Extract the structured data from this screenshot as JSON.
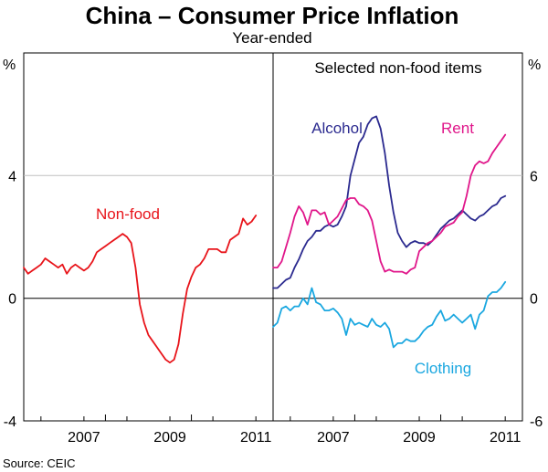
{
  "chart_data": {
    "type": "line",
    "title": "China – Consumer Price Inflation",
    "subtitle": "Year-ended",
    "source": "Source: CEIC",
    "colors": {
      "axes": "#000000",
      "grid": "#c0c0c0",
      "nonfood": "#e8141a",
      "alcohol": "#2b2a8f",
      "rent": "#e0168a",
      "clothing": "#1aa7e0"
    },
    "left_panel": {
      "unit_label": "%",
      "ylim": [
        -4,
        8
      ],
      "yticks": [
        -4,
        0,
        4
      ],
      "xlim": [
        2005.6,
        2011.4
      ],
      "xticks": [
        {
          "label": "2007",
          "pos": 2007.5
        },
        {
          "label": "2009",
          "pos": 2009.5
        },
        {
          "label": "2011",
          "pos": 2011.5
        }
      ],
      "series": [
        {
          "name": "Non-food",
          "label": "Non-food",
          "color": "#e8141a",
          "x": [
            2005.6,
            2005.7,
            2005.8,
            2005.9,
            2006.0,
            2006.1,
            2006.2,
            2006.3,
            2006.4,
            2006.5,
            2006.6,
            2006.7,
            2006.8,
            2006.9,
            2007.0,
            2007.1,
            2007.2,
            2007.3,
            2007.4,
            2007.5,
            2007.6,
            2007.7,
            2007.8,
            2007.9,
            2008.0,
            2008.1,
            2008.2,
            2008.3,
            2008.4,
            2008.5,
            2008.6,
            2008.7,
            2008.8,
            2008.9,
            2009.0,
            2009.1,
            2009.2,
            2009.3,
            2009.4,
            2009.5,
            2009.6,
            2009.7,
            2009.8,
            2009.9,
            2010.0,
            2010.1,
            2010.2,
            2010.3,
            2010.4,
            2010.5,
            2010.6,
            2010.7,
            2010.8,
            2010.9,
            2011.0
          ],
          "y": [
            1.0,
            0.8,
            0.9,
            1.0,
            1.1,
            1.3,
            1.2,
            1.1,
            1.0,
            1.1,
            0.8,
            1.0,
            1.1,
            1.0,
            0.9,
            1.0,
            1.2,
            1.5,
            1.6,
            1.7,
            1.8,
            1.9,
            2.0,
            2.1,
            2.0,
            1.8,
            1.0,
            -0.2,
            -0.8,
            -1.2,
            -1.4,
            -1.6,
            -1.8,
            -2.0,
            -2.1,
            -2.0,
            -1.5,
            -0.5,
            0.3,
            0.7,
            1.0,
            1.1,
            1.3,
            1.6,
            1.6,
            1.6,
            1.5,
            1.5,
            1.9,
            2.0,
            2.1,
            2.6,
            2.4,
            2.5,
            2.7
          ]
        }
      ]
    },
    "right_panel": {
      "panel_title": "Selected non-food items",
      "unit_label": "%",
      "ylim": [
        -6,
        12
      ],
      "yticks": [
        -6,
        0,
        6
      ],
      "xlim": [
        2005.6,
        2011.4
      ],
      "xticks": [
        {
          "label": "2007",
          "pos": 2007.5
        },
        {
          "label": "2009",
          "pos": 2009.5
        },
        {
          "label": "2011",
          "pos": 2011.5
        }
      ],
      "series": [
        {
          "name": "Alcohol",
          "label": "Alcohol",
          "color": "#2b2a8f",
          "x": [
            2005.6,
            2005.7,
            2005.8,
            2005.9,
            2006.0,
            2006.1,
            2006.2,
            2006.3,
            2006.4,
            2006.5,
            2006.6,
            2006.7,
            2006.8,
            2006.9,
            2007.0,
            2007.1,
            2007.2,
            2007.3,
            2007.4,
            2007.5,
            2007.6,
            2007.7,
            2007.8,
            2007.9,
            2008.0,
            2008.1,
            2008.2,
            2008.3,
            2008.4,
            2008.5,
            2008.6,
            2008.7,
            2008.8,
            2008.9,
            2009.0,
            2009.1,
            2009.2,
            2009.3,
            2009.4,
            2009.5,
            2009.6,
            2009.7,
            2009.8,
            2009.9,
            2010.0,
            2010.1,
            2010.2,
            2010.3,
            2010.4,
            2010.5,
            2010.6,
            2010.7,
            2010.8,
            2010.9,
            2011.0
          ],
          "y": [
            0.5,
            0.5,
            0.7,
            0.9,
            1.0,
            1.5,
            1.9,
            2.4,
            2.8,
            3.0,
            3.3,
            3.3,
            3.5,
            3.6,
            3.5,
            3.6,
            4.0,
            4.5,
            6.0,
            6.8,
            7.6,
            7.9,
            8.5,
            8.8,
            8.9,
            8.3,
            7.1,
            5.5,
            4.2,
            3.2,
            2.8,
            2.5,
            2.7,
            2.8,
            2.7,
            2.7,
            2.6,
            2.8,
            3.1,
            3.4,
            3.6,
            3.8,
            3.9,
            4.1,
            4.3,
            4.1,
            3.9,
            3.8,
            4.0,
            4.1,
            4.3,
            4.5,
            4.6,
            4.9,
            5.0
          ]
        },
        {
          "name": "Rent",
          "label": "Rent",
          "color": "#e0168a",
          "x": [
            2005.6,
            2005.7,
            2005.8,
            2005.9,
            2006.0,
            2006.1,
            2006.2,
            2006.3,
            2006.4,
            2006.5,
            2006.6,
            2006.7,
            2006.8,
            2006.9,
            2007.0,
            2007.1,
            2007.2,
            2007.3,
            2007.4,
            2007.5,
            2007.6,
            2007.7,
            2007.8,
            2007.9,
            2008.0,
            2008.1,
            2008.2,
            2008.3,
            2008.4,
            2008.5,
            2008.6,
            2008.7,
            2008.8,
            2008.9,
            2009.0,
            2009.1,
            2009.2,
            2009.3,
            2009.4,
            2009.5,
            2009.6,
            2009.7,
            2009.8,
            2009.9,
            2010.0,
            2010.1,
            2010.2,
            2010.3,
            2010.4,
            2010.5,
            2010.6,
            2010.7,
            2010.8,
            2010.9,
            2011.0
          ],
          "y": [
            1.5,
            1.5,
            1.8,
            2.5,
            3.2,
            4.0,
            4.5,
            4.2,
            3.6,
            4.3,
            4.3,
            4.1,
            4.2,
            3.6,
            3.8,
            4.0,
            4.4,
            4.8,
            4.9,
            4.9,
            4.6,
            4.5,
            4.3,
            3.8,
            2.8,
            1.8,
            1.3,
            1.4,
            1.3,
            1.3,
            1.3,
            1.2,
            1.4,
            1.5,
            2.3,
            2.5,
            2.7,
            2.8,
            3.0,
            3.2,
            3.5,
            3.6,
            3.7,
            4.0,
            4.2,
            5.0,
            6.0,
            6.5,
            6.7,
            6.6,
            6.7,
            7.1,
            7.4,
            7.7,
            8.0
          ]
        },
        {
          "name": "Clothing",
          "label": "Clothing",
          "color": "#1aa7e0",
          "x": [
            2005.6,
            2005.7,
            2005.8,
            2005.9,
            2006.0,
            2006.1,
            2006.2,
            2006.3,
            2006.4,
            2006.5,
            2006.6,
            2006.7,
            2006.8,
            2006.9,
            2007.0,
            2007.1,
            2007.2,
            2007.3,
            2007.4,
            2007.5,
            2007.6,
            2007.7,
            2007.8,
            2007.9,
            2008.0,
            2008.1,
            2008.2,
            2008.3,
            2008.4,
            2008.5,
            2008.6,
            2008.7,
            2008.8,
            2008.9,
            2009.0,
            2009.1,
            2009.2,
            2009.3,
            2009.4,
            2009.5,
            2009.6,
            2009.7,
            2009.8,
            2009.9,
            2010.0,
            2010.1,
            2010.2,
            2010.3,
            2010.4,
            2010.5,
            2010.6,
            2010.7,
            2010.8,
            2010.9,
            2011.0
          ],
          "y": [
            -1.4,
            -1.2,
            -0.5,
            -0.4,
            -0.6,
            -0.4,
            -0.4,
            0.0,
            -0.3,
            0.5,
            -0.2,
            -0.3,
            -0.6,
            -0.6,
            -0.5,
            -0.7,
            -1.0,
            -1.8,
            -1.0,
            -1.3,
            -1.2,
            -1.3,
            -1.4,
            -1.0,
            -1.3,
            -1.4,
            -1.2,
            -1.5,
            -2.4,
            -2.2,
            -2.2,
            -2.0,
            -2.1,
            -2.1,
            -1.9,
            -1.6,
            -1.4,
            -1.3,
            -0.9,
            -0.6,
            -1.1,
            -1.0,
            -0.8,
            -1.0,
            -1.2,
            -1.0,
            -0.8,
            -1.5,
            -0.8,
            -0.6,
            0.1,
            0.3,
            0.3,
            0.5,
            0.8
          ]
        }
      ]
    }
  }
}
